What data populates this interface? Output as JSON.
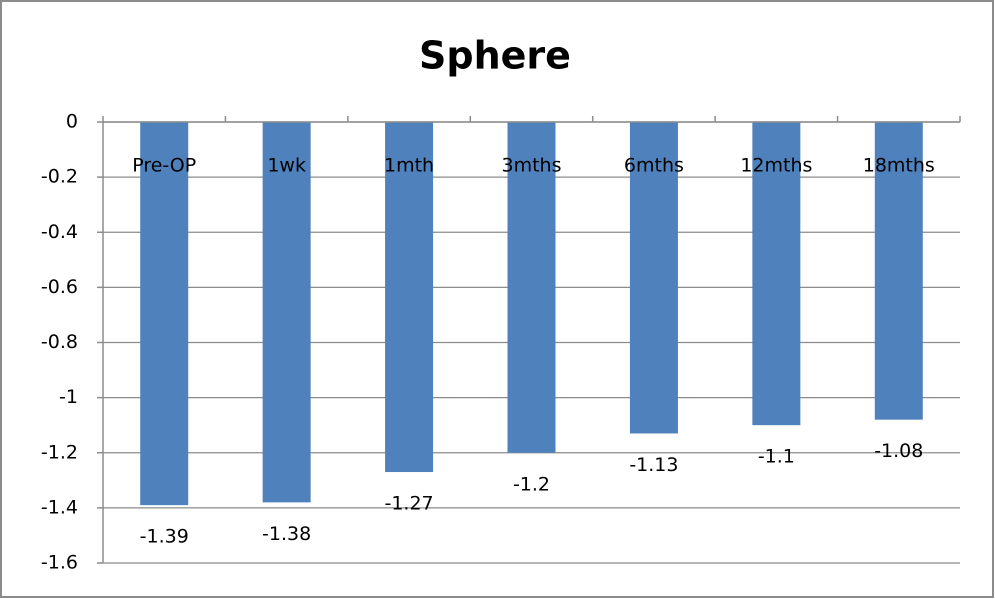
{
  "chart_data": {
    "type": "bar",
    "title": "Sphere",
    "categories": [
      "Pre-OP",
      "1wk",
      "1mth",
      "3mths",
      "6mths",
      "12mths",
      "18mths"
    ],
    "values": [
      -1.39,
      -1.38,
      -1.27,
      -1.2,
      -1.13,
      -1.1,
      -1.08
    ],
    "color": "#4f81bd",
    "ylim": [
      -1.6,
      0
    ],
    "yticks": [
      0,
      -0.2,
      -0.4,
      -0.6,
      -0.8,
      -1,
      -1.2,
      -1.4,
      -1.6
    ],
    "grid": true
  }
}
